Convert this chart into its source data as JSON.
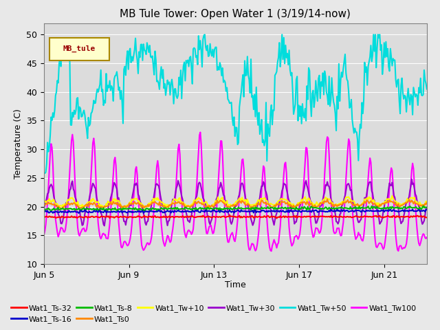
{
  "title": "MB Tule Tower: Open Water 1 (3/19/14-now)",
  "xlabel": "Time",
  "ylabel": "Temperature (C)",
  "ylim": [
    10,
    52
  ],
  "yticks": [
    10,
    15,
    20,
    25,
    30,
    35,
    40,
    45,
    50
  ],
  "xlim_days": [
    0,
    18
  ],
  "x_tick_labels": [
    "Jun 5",
    "Jun 9",
    "Jun 13",
    "Jun 17",
    "Jun 21"
  ],
  "x_tick_positions": [
    0,
    4,
    8,
    12,
    16
  ],
  "legend_label": "MB_tule",
  "series": {
    "Wat1_Ts-32": {
      "color": "#FF0000",
      "lw": 1.5
    },
    "Wat1_Ts-16": {
      "color": "#0000CC",
      "lw": 1.5
    },
    "Wat1_Ts-8": {
      "color": "#00BB00",
      "lw": 1.5
    },
    "Wat1_Ts0": {
      "color": "#FF8800",
      "lw": 1.5
    },
    "Wat1_Tw+10": {
      "color": "#FFFF00",
      "lw": 1.5
    },
    "Wat1_Tw+30": {
      "color": "#9900CC",
      "lw": 1.5
    },
    "Wat1_Tw+50": {
      "color": "#00DDDD",
      "lw": 1.5
    },
    "Wat1_Tw100": {
      "color": "#FF00FF",
      "lw": 1.5
    }
  },
  "bg_color": "#E8E8E8",
  "plot_bg": "#DCDCDC"
}
